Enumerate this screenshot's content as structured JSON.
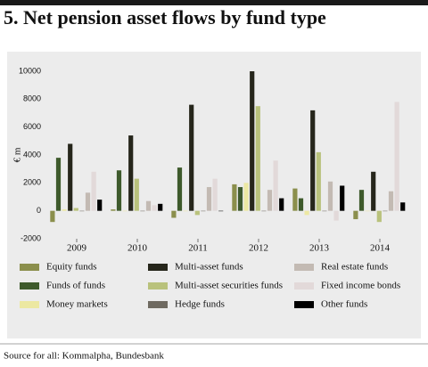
{
  "chart_data": {
    "type": "bar",
    "title": "5. Net pension asset flows by fund type",
    "ylabel": "€ m",
    "source": "Source for all: Kommalpha, Bundesbank",
    "categories": [
      "2009",
      "2010",
      "2011",
      "2012",
      "2013",
      "2014"
    ],
    "ylim": [
      -2000,
      10000
    ],
    "yticks": [
      -2000,
      0,
      2000,
      4000,
      6000,
      8000,
      10000
    ],
    "grid": false,
    "series": [
      {
        "name": "Equity funds",
        "color": "#8b8f4c",
        "values": [
          -800,
          100,
          -500,
          1900,
          1600,
          -600
        ]
      },
      {
        "name": "Funds of funds",
        "color": "#3e5a2c",
        "values": [
          3800,
          2900,
          3100,
          1700,
          900,
          1500
        ]
      },
      {
        "name": "Money markets",
        "color": "#ece8a2",
        "values": [
          100,
          0,
          0,
          2000,
          -300,
          0
        ]
      },
      {
        "name": "Multi-asset funds",
        "color": "#26261b",
        "values": [
          4800,
          5400,
          7600,
          10000,
          7200,
          2800
        ]
      },
      {
        "name": "Multi-asset securities funds",
        "color": "#b9c27c",
        "values": [
          200,
          2300,
          -300,
          7500,
          4200,
          -800
        ]
      },
      {
        "name": "Hedge funds",
        "color": "#6f6a61",
        "values": [
          0,
          0,
          0,
          0,
          0,
          0
        ]
      },
      {
        "name": "Real estate funds",
        "color": "#c3bab3",
        "values": [
          1300,
          700,
          1700,
          1500,
          2100,
          1400
        ]
      },
      {
        "name": "Fixed income bonds",
        "color": "#e2d9d9",
        "values": [
          2800,
          400,
          2300,
          3600,
          -700,
          7800
        ]
      },
      {
        "name": "Other funds",
        "color": "#000000",
        "values": [
          800,
          500,
          0,
          900,
          1800,
          600
        ]
      }
    ]
  }
}
